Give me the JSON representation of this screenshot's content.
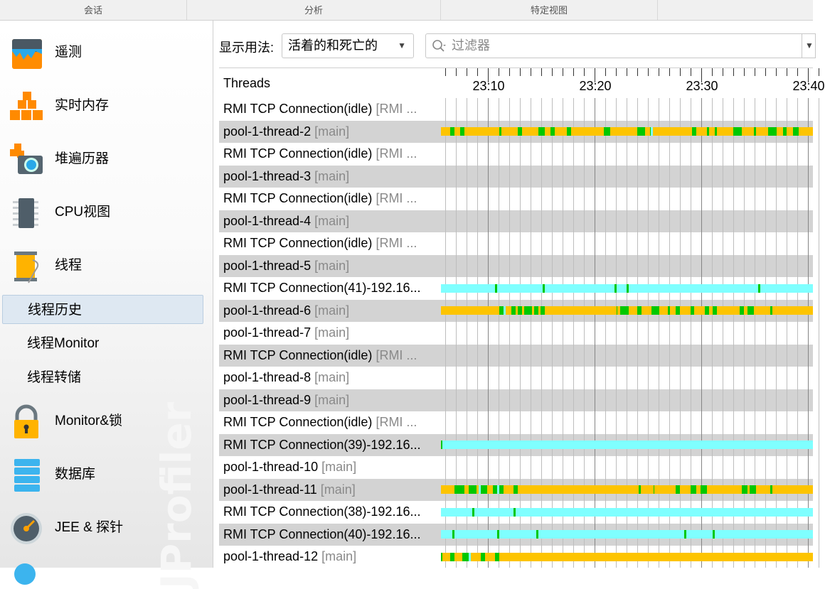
{
  "tabs": [
    "会话",
    "分析",
    "特定视图"
  ],
  "sidebar": {
    "items": [
      {
        "label": "遥测",
        "icon": "telemetry-icon"
      },
      {
        "label": "实时内存",
        "icon": "live-memory-icon"
      },
      {
        "label": "堆遍历器",
        "icon": "heap-walker-icon"
      },
      {
        "label": "CPU视图",
        "icon": "cpu-icon"
      },
      {
        "label": "线程",
        "icon": "threads-icon"
      },
      {
        "label": "Monitor&锁",
        "icon": "lock-icon"
      },
      {
        "label": "数据库",
        "icon": "database-icon"
      },
      {
        "label": "JEE & 探针",
        "icon": "probe-gauge-icon"
      }
    ],
    "sub_items": [
      "线程历史",
      "线程Monitor",
      "线程转储"
    ],
    "selected": "线程历史",
    "watermark": "JProfiler"
  },
  "toolbar": {
    "show_label": "显示用法:",
    "mode": "活着的和死亡的",
    "filter_placeholder": "过滤器"
  },
  "timeline": {
    "column_header": "Threads",
    "tick_labels": [
      "23:10",
      "23:20",
      "23:30",
      "23:40"
    ],
    "view_start": "23:05:36",
    "view_end": "23:40:28",
    "state_colors": {
      "runnable": "#00c800",
      "waiting": "#fdc400",
      "net_io": "#7fffff"
    }
  },
  "threads": [
    {
      "name": "RMI TCP Connection(idle)",
      "group": "[RMI ..."
    },
    {
      "name": "pool-1-thread-2",
      "group": "[main]",
      "bar": {
        "base": "waiting",
        "start": "23:05:36",
        "end": "23:40:28",
        "segments": [
          [
            "runnable",
            "23:06:27",
            "23:06:51"
          ],
          [
            "runnable",
            "23:07:24",
            "23:07:48"
          ],
          [
            "runnable",
            "23:11:04",
            "23:11:16"
          ],
          [
            "runnable",
            "23:12:48",
            "23:13:11"
          ],
          [
            "runnable",
            "23:14:44",
            "23:15:19"
          ],
          [
            "runnable",
            "23:15:52",
            "23:16:16"
          ],
          [
            "runnable",
            "23:17:24",
            "23:17:48"
          ],
          [
            "runnable",
            "23:20:52",
            "23:21:28"
          ],
          [
            "runnable",
            "23:23:59",
            "23:24:44"
          ],
          [
            "runnable",
            "23:25:11",
            "23:25:17"
          ],
          [
            "net_io",
            "23:25:17",
            "23:25:29"
          ],
          [
            "runnable",
            "23:29:08",
            "23:29:32"
          ],
          [
            "runnable",
            "23:30:31",
            "23:30:43"
          ],
          [
            "runnable",
            "23:31:16",
            "23:31:28"
          ],
          [
            "runnable",
            "23:33:00",
            "23:33:48"
          ],
          [
            "runnable",
            "23:34:56",
            "23:35:08"
          ],
          [
            "runnable",
            "23:36:16",
            "23:37:04"
          ],
          [
            "runnable",
            "23:37:39",
            "23:38:00"
          ],
          [
            "runnable",
            "23:38:36",
            "23:39:08"
          ]
        ]
      }
    },
    {
      "name": "RMI TCP Connection(idle)",
      "group": "[RMI ..."
    },
    {
      "name": "pool-1-thread-3",
      "group": "[main]"
    },
    {
      "name": "RMI TCP Connection(idle)",
      "group": "[RMI ..."
    },
    {
      "name": "pool-1-thread-4",
      "group": "[main]"
    },
    {
      "name": "RMI TCP Connection(idle)",
      "group": "[RMI ..."
    },
    {
      "name": "pool-1-thread-5",
      "group": "[main]"
    },
    {
      "name": "RMI TCP Connection(41)-192.16...",
      "group": "",
      "bar": {
        "base": "net_io",
        "start": "23:05:36",
        "end": "23:40:28",
        "segments": [
          [
            "runnable",
            "23:10:41",
            "23:10:52"
          ],
          [
            "runnable",
            "23:15:07",
            "23:15:19"
          ],
          [
            "runnable",
            "23:21:51",
            "23:22:03"
          ],
          [
            "runnable",
            "23:23:00",
            "23:23:12"
          ],
          [
            "runnable",
            "23:35:20",
            "23:35:31"
          ]
        ]
      }
    },
    {
      "name": "pool-1-thread-6",
      "group": "[main]",
      "bar": {
        "base": "waiting",
        "start": "23:05:36",
        "end": "23:40:28",
        "segments": [
          [
            "runnable",
            "23:11:04",
            "23:11:27"
          ],
          [
            "net_io",
            "23:11:27",
            "23:11:39"
          ],
          [
            "runnable",
            "23:12:13",
            "23:12:36"
          ],
          [
            "runnable",
            "23:12:48",
            "23:13:11"
          ],
          [
            "runnable",
            "23:13:23",
            "23:14:09"
          ],
          [
            "runnable",
            "23:14:20",
            "23:14:44"
          ],
          [
            "runnable",
            "23:14:55",
            "23:15:19"
          ],
          [
            "runnable",
            "23:22:03",
            "23:22:07"
          ],
          [
            "runnable",
            "23:22:25",
            "23:23:12"
          ],
          [
            "runnable",
            "23:23:59",
            "23:24:25"
          ],
          [
            "runnable",
            "23:25:19",
            "23:26:05"
          ],
          [
            "runnable",
            "23:26:51",
            "23:27:03"
          ],
          [
            "runnable",
            "23:27:37",
            "23:28:00"
          ],
          [
            "runnable",
            "23:28:59",
            "23:29:21"
          ],
          [
            "runnable",
            "23:30:19",
            "23:30:43"
          ],
          [
            "runnable",
            "23:31:05",
            "23:31:28"
          ],
          [
            "runnable",
            "23:33:36",
            "23:33:59"
          ],
          [
            "runnable",
            "23:34:21",
            "23:34:56"
          ],
          [
            "runnable",
            "23:36:29",
            "23:36:40"
          ]
        ]
      }
    },
    {
      "name": "pool-1-thread-7",
      "group": "[main]"
    },
    {
      "name": "RMI TCP Connection(idle)",
      "group": "[RMI ..."
    },
    {
      "name": "pool-1-thread-8",
      "group": "[main]"
    },
    {
      "name": "pool-1-thread-9",
      "group": "[main]"
    },
    {
      "name": "RMI TCP Connection(idle)",
      "group": "[RMI ..."
    },
    {
      "name": "RMI TCP Connection(39)-192.16...",
      "group": "",
      "bar": {
        "base": "net_io",
        "start": "23:05:36",
        "end": "23:40:28",
        "segments": [
          [
            "runnable",
            "23:05:36",
            "23:05:44"
          ]
        ]
      }
    },
    {
      "name": "pool-1-thread-10",
      "group": "[main]"
    },
    {
      "name": "pool-1-thread-11",
      "group": "[main]",
      "bar": {
        "base": "waiting",
        "start": "23:05:36",
        "end": "23:40:28",
        "segments": [
          [
            "runnable",
            "23:06:51",
            "23:07:48"
          ],
          [
            "runnable",
            "23:08:11",
            "23:08:57"
          ],
          [
            "net_io",
            "23:09:08",
            "23:09:20"
          ],
          [
            "runnable",
            "23:09:20",
            "23:09:55"
          ],
          [
            "runnable",
            "23:10:29",
            "23:10:52"
          ],
          [
            "net_io",
            "23:10:52",
            "23:11:04"
          ],
          [
            "runnable",
            "23:11:04",
            "23:11:27"
          ],
          [
            "runnable",
            "23:12:25",
            "23:12:48"
          ],
          [
            "runnable",
            "23:24:09",
            "23:24:21"
          ],
          [
            "runnable",
            "23:25:31",
            "23:25:35"
          ],
          [
            "runnable",
            "23:27:37",
            "23:28:00"
          ],
          [
            "runnable",
            "23:28:59",
            "23:29:33"
          ],
          [
            "runnable",
            "23:29:56",
            "23:30:31"
          ],
          [
            "runnable",
            "23:33:47",
            "23:34:21"
          ],
          [
            "runnable",
            "23:34:33",
            "23:35:08"
          ],
          [
            "runnable",
            "23:36:29",
            "23:36:40"
          ]
        ]
      }
    },
    {
      "name": "RMI TCP Connection(38)-192.16...",
      "group": "",
      "bar": {
        "base": "net_io",
        "start": "23:05:36",
        "end": "23:40:28",
        "segments": [
          [
            "runnable",
            "23:08:33",
            "23:08:45"
          ],
          [
            "runnable",
            "23:12:25",
            "23:12:37"
          ]
        ]
      }
    },
    {
      "name": "RMI TCP Connection(40)-192.16...",
      "group": "",
      "bar": {
        "base": "net_io",
        "start": "23:05:36",
        "end": "23:40:28",
        "segments": [
          [
            "runnable",
            "23:06:39",
            "23:06:51"
          ],
          [
            "runnable",
            "23:10:52",
            "23:11:04"
          ],
          [
            "runnable",
            "23:14:32",
            "23:14:44"
          ],
          [
            "runnable",
            "23:28:24",
            "23:28:36"
          ],
          [
            "runnable",
            "23:31:05",
            "23:31:17"
          ]
        ]
      }
    },
    {
      "name": "pool-1-thread-12",
      "group": "[main]",
      "bar": {
        "base": "waiting",
        "start": "23:05:36",
        "end": "23:40:28",
        "segments": [
          [
            "runnable",
            "23:05:36",
            "23:05:44"
          ],
          [
            "runnable",
            "23:06:27",
            "23:06:51"
          ],
          [
            "runnable",
            "23:07:36",
            "23:08:11"
          ],
          [
            "net_io",
            "23:08:11",
            "23:08:23"
          ],
          [
            "runnable",
            "23:09:20",
            "23:09:43"
          ],
          [
            "runnable",
            "23:10:41",
            "23:11:04"
          ]
        ]
      }
    }
  ]
}
